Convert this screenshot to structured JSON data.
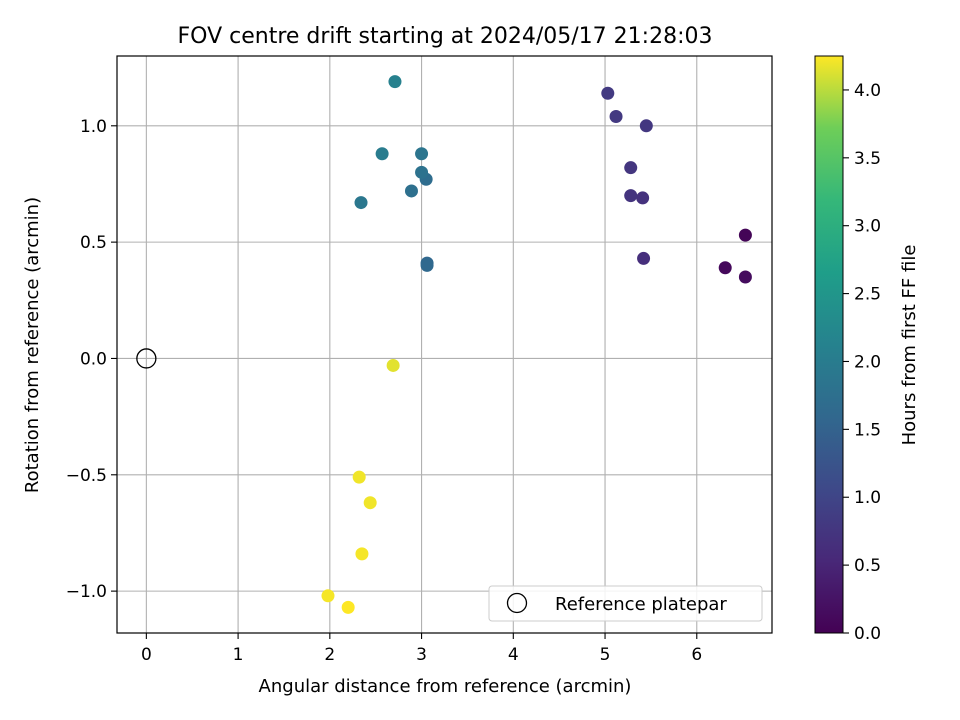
{
  "chart_data": {
    "type": "scatter",
    "title": "FOV centre drift starting at 2024/05/17 21:28:03",
    "xlabel": "Angular distance from reference (arcmin)",
    "ylabel": "Rotation from reference (arcmin)",
    "xlim": [
      -0.32,
      6.82
    ],
    "ylim": [
      -1.18,
      1.3
    ],
    "xticks": [
      0,
      1,
      2,
      3,
      4,
      5,
      6
    ],
    "xtick_labels": [
      "0",
      "1",
      "2",
      "3",
      "4",
      "5",
      "6"
    ],
    "yticks": [
      -1.0,
      -0.5,
      0.0,
      0.5,
      1.0
    ],
    "ytick_labels": [
      "−1.0",
      "−0.5",
      "0.0",
      "0.5",
      "1.0"
    ],
    "grid": true,
    "colormap": "viridis",
    "colorbar": {
      "label": "Hours from first FF file",
      "range": [
        0.0,
        4.25
      ],
      "ticks": [
        0.0,
        0.5,
        1.0,
        1.5,
        2.0,
        2.5,
        3.0,
        3.5,
        4.0
      ],
      "tick_labels": [
        "0.0",
        "0.5",
        "1.0",
        "1.5",
        "2.0",
        "2.5",
        "3.0",
        "3.5",
        "4.0"
      ]
    },
    "legend": {
      "placement": "lower-right",
      "entries": [
        "Reference platepar"
      ]
    },
    "reference_point": {
      "x": 0,
      "y": 0
    },
    "points": [
      {
        "x": 6.53,
        "y": 0.53,
        "c": 0.05
      },
      {
        "x": 6.31,
        "y": 0.39,
        "c": 0.1
      },
      {
        "x": 6.53,
        "y": 0.35,
        "c": 0.15
      },
      {
        "x": 5.42,
        "y": 0.43,
        "c": 0.65
      },
      {
        "x": 5.41,
        "y": 0.69,
        "c": 0.7
      },
      {
        "x": 5.28,
        "y": 0.7,
        "c": 0.72
      },
      {
        "x": 5.28,
        "y": 0.82,
        "c": 0.75
      },
      {
        "x": 5.45,
        "y": 1.0,
        "c": 0.78
      },
      {
        "x": 5.12,
        "y": 1.04,
        "c": 0.8
      },
      {
        "x": 5.03,
        "y": 1.14,
        "c": 0.82
      },
      {
        "x": 3.06,
        "y": 0.41,
        "c": 1.6
      },
      {
        "x": 3.06,
        "y": 0.4,
        "c": 1.62
      },
      {
        "x": 3.05,
        "y": 0.77,
        "c": 1.7
      },
      {
        "x": 2.89,
        "y": 0.72,
        "c": 1.75
      },
      {
        "x": 3.0,
        "y": 0.8,
        "c": 1.8
      },
      {
        "x": 3.0,
        "y": 0.88,
        "c": 1.85
      },
      {
        "x": 2.34,
        "y": 0.67,
        "c": 1.9
      },
      {
        "x": 2.57,
        "y": 0.88,
        "c": 2.0
      },
      {
        "x": 2.71,
        "y": 1.19,
        "c": 2.1
      },
      {
        "x": 2.69,
        "y": -0.03,
        "c": 4.15
      },
      {
        "x": 2.32,
        "y": -0.51,
        "c": 4.2
      },
      {
        "x": 2.44,
        "y": -0.62,
        "c": 4.2
      },
      {
        "x": 2.35,
        "y": -0.84,
        "c": 4.22
      },
      {
        "x": 1.98,
        "y": -1.02,
        "c": 4.22
      },
      {
        "x": 2.2,
        "y": -1.07,
        "c": 4.25
      }
    ]
  }
}
